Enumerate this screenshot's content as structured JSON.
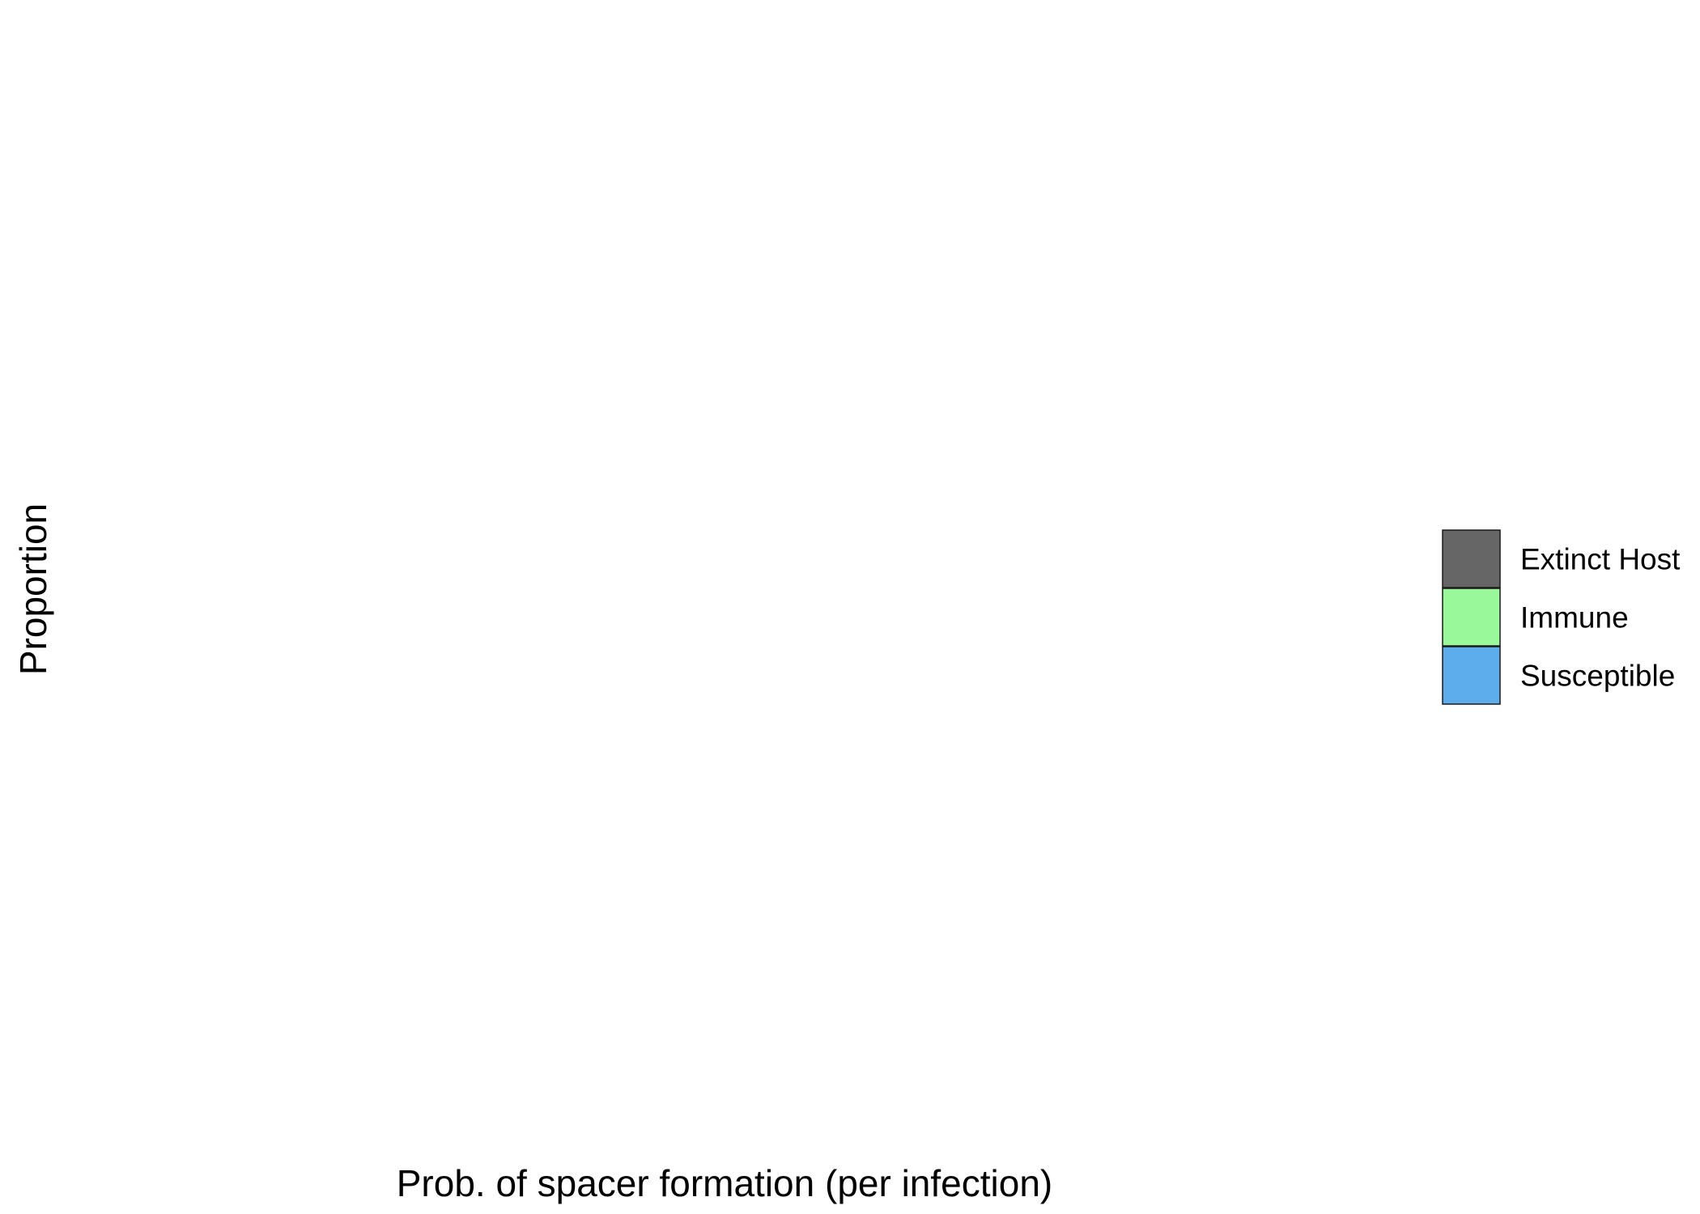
{
  "chart_data": {
    "type": "bar",
    "title": "",
    "xlabel": "Prob. of spacer formation (per infection)",
    "ylabel": "Proportion",
    "categories": [],
    "series": [],
    "grid": false,
    "legend_placement": "right",
    "legend": [
      {
        "label": "Extinct Host",
        "color": "#666666"
      },
      {
        "label": "Immune",
        "color": "#99f99a"
      },
      {
        "label": "Susceptible",
        "color": "#5dadec"
      }
    ]
  }
}
